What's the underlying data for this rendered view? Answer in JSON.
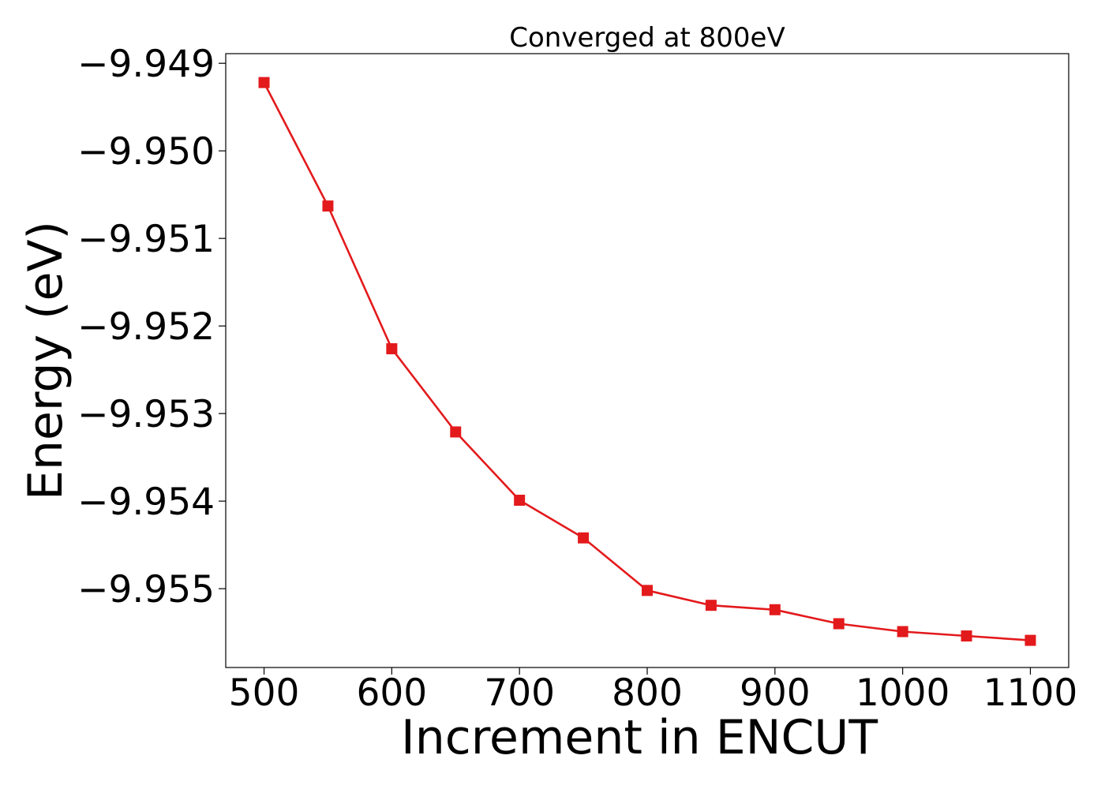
{
  "chart_data": {
    "type": "line",
    "title": "Converged at 800eV",
    "xlabel": "Increment in ENCUT",
    "ylabel": "Energy (eV)",
    "x": [
      500,
      550,
      600,
      650,
      700,
      750,
      800,
      850,
      900,
      950,
      1000,
      1050,
      1100
    ],
    "series": [
      {
        "values": [
          -9.94922,
          -9.95063,
          -9.95226,
          -9.95321,
          -9.95399,
          -9.95442,
          -9.95502,
          -9.95519,
          -9.95524,
          -9.9554,
          -9.95549,
          -9.95554,
          -9.95559
        ],
        "color": "#e31a1c",
        "marker": "square"
      }
    ],
    "xticks": [
      500,
      600,
      700,
      800,
      900,
      1000,
      1100
    ],
    "xtick_labels": [
      "500",
      "600",
      "700",
      "800",
      "900",
      "1000",
      "1100"
    ],
    "yticks": [
      -9.949,
      -9.95,
      -9.951,
      -9.952,
      -9.953,
      -9.954,
      -9.955
    ],
    "ytick_labels": [
      "−9.949",
      "−9.950",
      "−9.951",
      "−9.952",
      "−9.953",
      "−9.954",
      "−9.955"
    ],
    "xlim": [
      470,
      1130
    ],
    "ylim": [
      -9.9559,
      -9.94889
    ],
    "grid": false,
    "legend": "none"
  }
}
